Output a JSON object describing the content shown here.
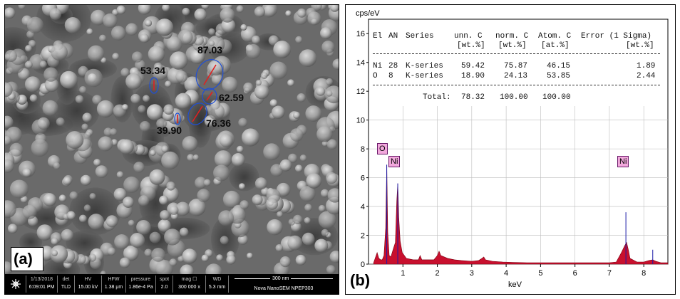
{
  "panel_a": {
    "letter": "(a)",
    "measurements": [
      "87.03",
      "53.34",
      "62.59",
      "76.36",
      "39.90"
    ],
    "infobar": [
      {
        "header": "1/13/2018",
        "value": "6:09:01 PM"
      },
      {
        "header": "det",
        "value": "TLD"
      },
      {
        "header": "HV",
        "value": "15.00 kV"
      },
      {
        "header": "HFW",
        "value": "1.38 μm"
      },
      {
        "header": "pressure",
        "value": "1.86e-4 Pa"
      },
      {
        "header": "spot",
        "value": "2.0"
      },
      {
        "header": "mag ☐",
        "value": "300 000 x"
      },
      {
        "header": "WD",
        "value": "5.3 mm"
      }
    ],
    "scalebar_label": "300 nm",
    "instrument": "Nova NanoSEM NPEP303",
    "logo_icon": "fei-logo-icon"
  },
  "panel_b": {
    "letter": "(b)",
    "y_unit": "cps/eV",
    "x_label": "keV",
    "table": {
      "header1": [
        "El",
        "AN",
        "Series",
        "unn. C",
        "norm. C",
        "Atom. C",
        "Error (1 Sigma)"
      ],
      "header2": [
        "[wt.%]",
        "[wt.%]",
        "[at.%]",
        "[wt.%]"
      ],
      "rows": [
        [
          "Ni",
          "28",
          "K-series",
          "59.42",
          "75.87",
          "46.15",
          "1.89"
        ],
        [
          "O",
          "8",
          "K-series",
          "18.90",
          "24.13",
          "53.85",
          "2.44"
        ]
      ],
      "total_label": "Total:",
      "totals": [
        "78.32",
        "100.00",
        "100.00"
      ]
    },
    "peak_labels": [
      "O",
      "Ni",
      "Ni"
    ],
    "colors": {
      "spectrum_fill": "#c8102e",
      "peak_line": "#1a1aa8",
      "peak_label_bg": "#f2a8dc"
    }
  },
  "chart_data": {
    "type": "area",
    "xlabel": "keV",
    "ylabel": "cps/eV",
    "xlim": [
      0.0,
      8.7
    ],
    "ylim": [
      0,
      17
    ],
    "xticks": [
      "1",
      "2",
      "3",
      "4",
      "5",
      "6",
      "7",
      "8"
    ],
    "yticks": [
      "0",
      "2",
      "4",
      "6",
      "8",
      "10",
      "12",
      "14",
      "16"
    ],
    "grid": true,
    "x": [
      0.15,
      0.25,
      0.3,
      0.35,
      0.4,
      0.45,
      0.5,
      0.53,
      0.56,
      0.6,
      0.65,
      0.7,
      0.74,
      0.78,
      0.82,
      0.85,
      0.88,
      0.92,
      0.98,
      1.1,
      1.3,
      1.45,
      1.5,
      1.55,
      1.7,
      1.9,
      2.0,
      2.05,
      2.1,
      2.3,
      2.5,
      2.7,
      3.0,
      3.2,
      3.3,
      3.35,
      3.4,
      3.6,
      3.9,
      4.2,
      4.6,
      5.0,
      5.5,
      6.0,
      6.5,
      7.0,
      7.2,
      7.35,
      7.45,
      7.5,
      7.55,
      7.6,
      7.8,
      8.0,
      8.15,
      8.26,
      8.35,
      8.5,
      8.7
    ],
    "counts": [
      0.1,
      0.8,
      0.4,
      0.3,
      0.3,
      0.6,
      2.5,
      6.9,
      2.2,
      0.6,
      0.5,
      0.9,
      1.2,
      1.5,
      4.3,
      5.6,
      3.2,
      1.6,
      0.8,
      0.4,
      0.3,
      0.3,
      0.6,
      0.3,
      0.3,
      0.3,
      0.6,
      0.9,
      0.6,
      0.4,
      0.3,
      0.25,
      0.2,
      0.25,
      0.4,
      0.5,
      0.3,
      0.2,
      0.15,
      0.12,
      0.1,
      0.1,
      0.1,
      0.1,
      0.1,
      0.1,
      0.15,
      0.8,
      1.3,
      1.5,
      1.0,
      0.4,
      0.15,
      0.15,
      0.25,
      0.3,
      0.2,
      0.1,
      0.1
    ],
    "peak_lines": [
      {
        "label": "O",
        "x": 0.53,
        "height": 6.9
      },
      {
        "label": "Ni",
        "x": 0.85,
        "height": 5.6
      },
      {
        "label": "Ni",
        "x": 7.48,
        "height": 3.6
      },
      {
        "label": "",
        "x": 8.26,
        "height": 1.0
      }
    ]
  }
}
